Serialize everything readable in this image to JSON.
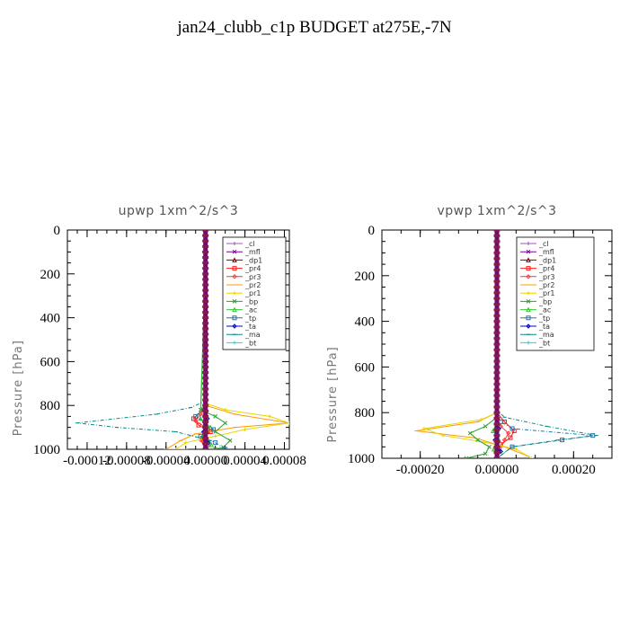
{
  "page_title": "jan24_clubb_c1p  BUDGET at275E,-7N",
  "legend_entries": [
    {
      "label": "_cl",
      "color": "#9b59b6"
    },
    {
      "label": "_mfl",
      "color": "#7b0099"
    },
    {
      "label": "_dp1",
      "color": "#8b0000"
    },
    {
      "label": "_pr4",
      "color": "#ff1a1a"
    },
    {
      "label": "_pr3",
      "color": "#ff3333"
    },
    {
      "label": "_pr2",
      "color": "#ff9900"
    },
    {
      "label": "_pr1",
      "color": "#e6d600"
    },
    {
      "label": "_bp",
      "color": "#2ca02c"
    },
    {
      "label": "_ac",
      "color": "#33cc33"
    },
    {
      "label": "_tp",
      "color": "#1f77b4"
    },
    {
      "label": "_ta",
      "color": "#0000cc"
    },
    {
      "label": "_ma",
      "color": "#008b8b"
    },
    {
      "label": "_bt",
      "color": "#00e5ee"
    }
  ],
  "chart_data": [
    {
      "type": "line",
      "title": "upwp   1xm^2/s^3",
      "xlabel": "",
      "ylabel": "Pressure  [hPa]",
      "xlim": [
        -0.00014,
        8.5e-05
      ],
      "ylim": [
        1000,
        0
      ],
      "xticks": [
        "-0.00012",
        "-0.00008",
        "-0.00004",
        "0.00000",
        "0.00004",
        "0.00008"
      ],
      "xtick_values": [
        -0.00012,
        -8e-05,
        -4e-05,
        0,
        4e-05,
        8e-05
      ],
      "yticks": [
        "0",
        "200",
        "400",
        "600",
        "800",
        "1000"
      ],
      "ytick_values": [
        0,
        200,
        400,
        600,
        800,
        1000
      ],
      "legend_position": "top-right",
      "series": [
        {
          "name": "_cl",
          "color": "#9b59b6",
          "x": [
            0,
            0,
            0,
            0,
            0,
            0,
            0
          ],
          "y": [
            0,
            200,
            400,
            600,
            800,
            900,
            1000
          ]
        },
        {
          "name": "_mfl",
          "color": "#7b0099",
          "x": [
            0,
            0,
            0,
            0,
            0,
            0,
            0
          ],
          "y": [
            0,
            200,
            400,
            600,
            800,
            900,
            1000
          ]
        },
        {
          "name": "_dp1",
          "color": "#8b0000",
          "x": [
            0,
            0,
            0,
            0,
            0,
            0,
            0
          ],
          "y": [
            0,
            200,
            400,
            600,
            800,
            900,
            1000
          ]
        },
        {
          "name": "_pr4",
          "color": "#ff1a1a",
          "x": [
            0,
            0,
            -3e-06,
            -1.2e-05,
            -7e-06,
            5e-06,
            -3e-06,
            2e-06,
            0
          ],
          "y": [
            0,
            780,
            820,
            860,
            890,
            920,
            950,
            980,
            1000
          ]
        },
        {
          "name": "_pr3",
          "color": "#ff3333",
          "x": [
            0,
            0,
            -5e-06,
            -1e-05,
            3e-06,
            -4e-06,
            0
          ],
          "y": [
            0,
            800,
            840,
            870,
            910,
            960,
            1000
          ]
        },
        {
          "name": "_pr2",
          "color": "#ff9900",
          "x": [
            0,
            0,
            3e-05,
            8.5e-05,
            3e-05,
            -1e-05,
            -2.5e-05,
            -4e-05,
            -2e-05
          ],
          "y": [
            0,
            800,
            840,
            880,
            900,
            930,
            960,
            1000,
            1000
          ]
        },
        {
          "name": "_pr1",
          "color": "#e6d600",
          "x": [
            0,
            0,
            2e-05,
            6.5e-05,
            8.5e-05,
            4e-05,
            1e-05,
            -2e-05,
            -3e-05
          ],
          "y": [
            0,
            790,
            820,
            850,
            880,
            910,
            940,
            970,
            1000
          ]
        },
        {
          "name": "_bp",
          "color": "#2ca02c",
          "x": [
            0,
            0,
            -5e-06,
            1e-05,
            2e-05,
            1e-05,
            2.5e-05,
            1.8e-05,
            1e-05
          ],
          "y": [
            0,
            150,
            820,
            850,
            880,
            920,
            960,
            990,
            1000
          ]
        },
        {
          "name": "_ac",
          "color": "#33cc33",
          "x": [
            0,
            0,
            -5e-06,
            5e-06,
            -3e-06,
            6e-06,
            0
          ],
          "y": [
            0,
            200,
            860,
            900,
            940,
            980,
            1000
          ]
        },
        {
          "name": "_tp",
          "color": "#1f77b4",
          "x": [
            0,
            0,
            -1e-05,
            0,
            8e-06,
            -5e-06,
            1e-05,
            2e-05
          ],
          "y": [
            0,
            800,
            850,
            880,
            910,
            940,
            970,
            1000
          ]
        },
        {
          "name": "_ta",
          "color": "#0000cc",
          "x": [
            0,
            0,
            2e-06,
            -2e-06,
            3e-06,
            0
          ],
          "y": [
            0,
            800,
            860,
            920,
            970,
            1000
          ]
        },
        {
          "name": "_ma",
          "color": "#008b8b",
          "x": [
            0,
            0,
            -1.5e-05,
            -5e-05,
            -0.00013,
            -9e-05,
            -3e-05,
            5e-06,
            0
          ],
          "y": [
            0,
            780,
            810,
            840,
            880,
            900,
            920,
            960,
            1000
          ]
        },
        {
          "name": "_bt",
          "color": "#00e5ee",
          "x": [
            0,
            0,
            0,
            0,
            0,
            0
          ],
          "y": [
            0,
            200,
            400,
            600,
            800,
            1000
          ]
        }
      ]
    },
    {
      "type": "line",
      "title": "vpwp   1xm^2/s^3",
      "xlabel": "",
      "ylabel": "Pressure  [hPa]",
      "xlim": [
        -0.0003,
        0.0003
      ],
      "ylim": [
        1000,
        0
      ],
      "xticks": [
        "-0.00020",
        "0.00000",
        "0.00020"
      ],
      "xtick_values": [
        -0.0002,
        0,
        0.0002
      ],
      "yticks": [
        "0",
        "200",
        "400",
        "600",
        "800",
        "1000"
      ],
      "ytick_values": [
        0,
        200,
        400,
        600,
        800,
        1000
      ],
      "legend_position": "top-right",
      "series": [
        {
          "name": "_cl",
          "color": "#9b59b6",
          "x": [
            0,
            0,
            0,
            0,
            0,
            0,
            0
          ],
          "y": [
            0,
            200,
            400,
            600,
            800,
            900,
            1000
          ]
        },
        {
          "name": "_mfl",
          "color": "#7b0099",
          "x": [
            0,
            0,
            0,
            0,
            0,
            0,
            0
          ],
          "y": [
            0,
            200,
            400,
            600,
            800,
            900,
            1000
          ]
        },
        {
          "name": "_dp1",
          "color": "#8b0000",
          "x": [
            0,
            0,
            0,
            0,
            0,
            0,
            0
          ],
          "y": [
            0,
            200,
            400,
            600,
            800,
            900,
            1000
          ]
        },
        {
          "name": "_pr4",
          "color": "#ff1a1a",
          "x": [
            0,
            0,
            2e-05,
            4.5e-05,
            3.5e-05,
            1e-05,
            0
          ],
          "y": [
            0,
            800,
            840,
            880,
            910,
            940,
            1000
          ]
        },
        {
          "name": "_pr3",
          "color": "#ff3333",
          "x": [
            0,
            0,
            1e-05,
            3e-05,
            2e-05,
            0
          ],
          "y": [
            0,
            820,
            860,
            890,
            920,
            1000
          ]
        },
        {
          "name": "_pr2",
          "color": "#ff9900",
          "x": [
            0,
            0,
            -5e-05,
            -0.00021,
            -6e-05,
            2e-05,
            8e-05
          ],
          "y": [
            0,
            800,
            840,
            880,
            910,
            950,
            990
          ]
        },
        {
          "name": "_pr1",
          "color": "#e6d600",
          "x": [
            0,
            0,
            -4e-05,
            -0.00019,
            -0.00014,
            -3e-05,
            5e-05,
            9e-05
          ],
          "y": [
            0,
            800,
            830,
            870,
            900,
            930,
            960,
            1000
          ]
        },
        {
          "name": "_bp",
          "color": "#2ca02c",
          "x": [
            0,
            0,
            -3e-05,
            -7e-05,
            -5e-05,
            -2e-05,
            -3e-05,
            -8e-05
          ],
          "y": [
            0,
            820,
            860,
            890,
            920,
            950,
            980,
            1000
          ]
        },
        {
          "name": "_ac",
          "color": "#33cc33",
          "x": [
            0,
            0,
            -1e-05,
            5e-06,
            -8e-06,
            0
          ],
          "y": [
            0,
            840,
            880,
            920,
            960,
            1000
          ]
        },
        {
          "name": "_tp",
          "color": "#1f77b4",
          "x": [
            0,
            0,
            1e-05,
            4e-05,
            0.00025,
            0.00017,
            4e-05,
            0
          ],
          "y": [
            0,
            800,
            840,
            870,
            900,
            920,
            950,
            1000
          ]
        },
        {
          "name": "_ta",
          "color": "#0000cc",
          "x": [
            0,
            0,
            5e-06,
            -5e-06,
            1e-05,
            0
          ],
          "y": [
            0,
            820,
            870,
            920,
            970,
            1000
          ]
        },
        {
          "name": "_ma",
          "color": "#008b8b",
          "x": [
            0,
            0,
            2e-05,
            0.00013,
            0.00026,
            0.00016,
            4e-05,
            0
          ],
          "y": [
            0,
            790,
            820,
            860,
            900,
            920,
            950,
            1000
          ]
        },
        {
          "name": "_bt",
          "color": "#00e5ee",
          "x": [
            0,
            0,
            0,
            0,
            0,
            0
          ],
          "y": [
            0,
            200,
            400,
            600,
            800,
            1000
          ]
        }
      ]
    }
  ]
}
